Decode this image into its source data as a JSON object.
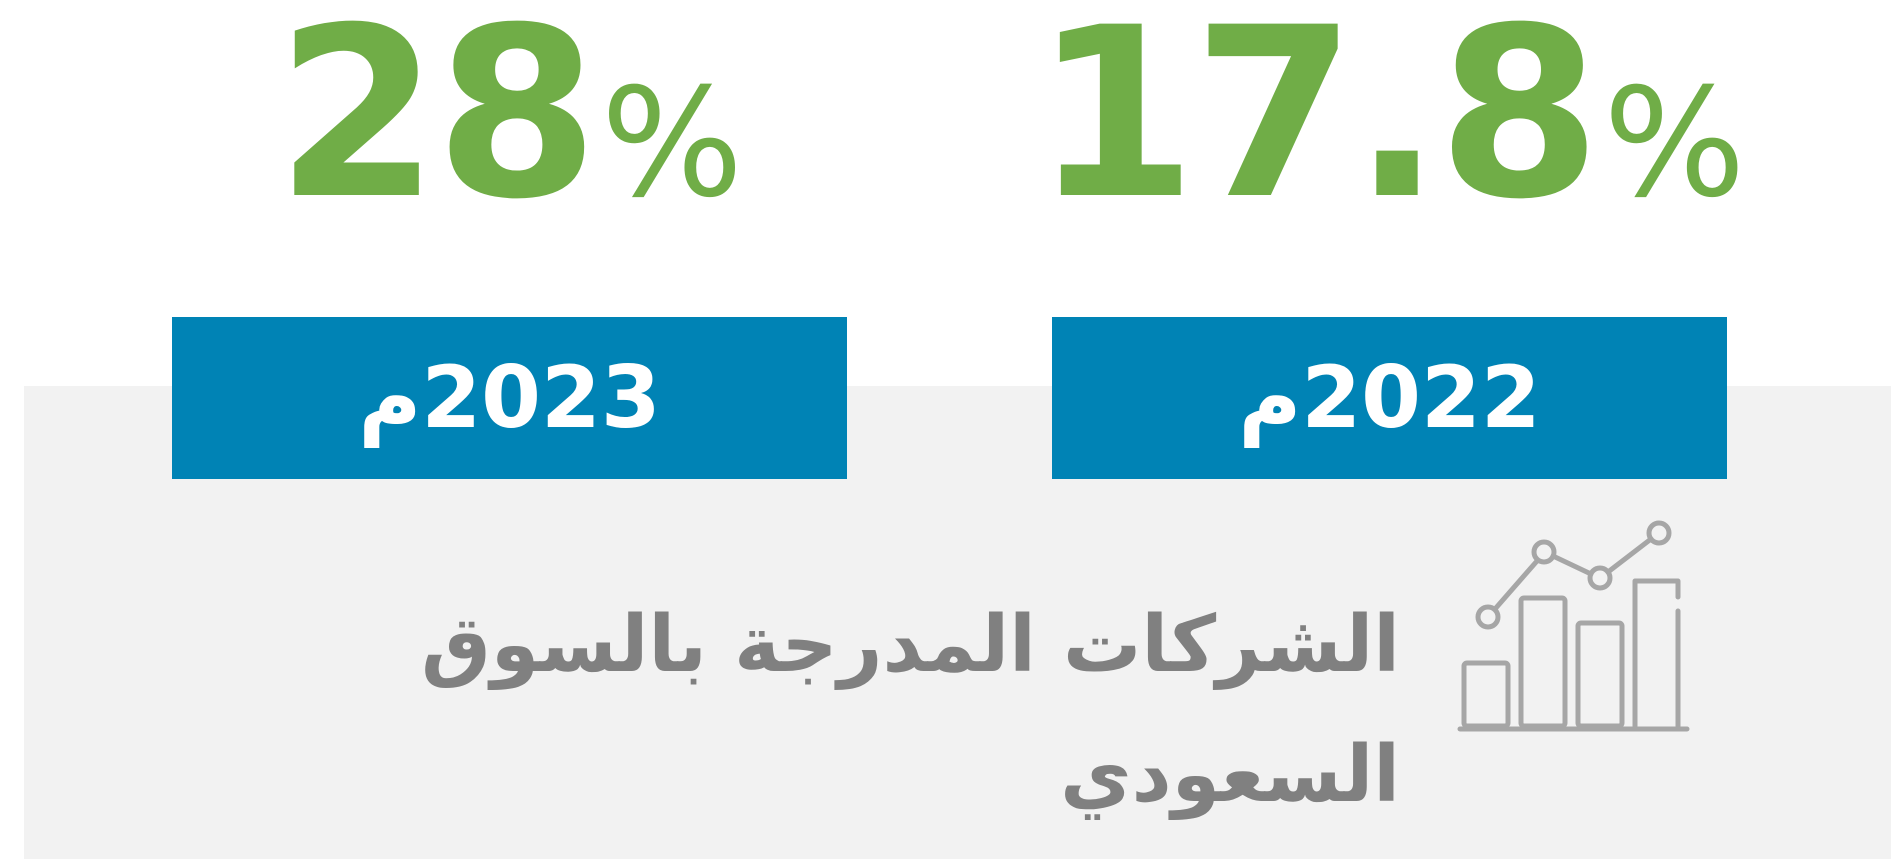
{
  "stats": [
    {
      "value": "28",
      "unit": "%",
      "year": "2023م"
    },
    {
      "value": "17.8",
      "unit": "%",
      "year": "2022م"
    }
  ],
  "caption": "الشركات المدرجة بالسوق السعودي"
}
